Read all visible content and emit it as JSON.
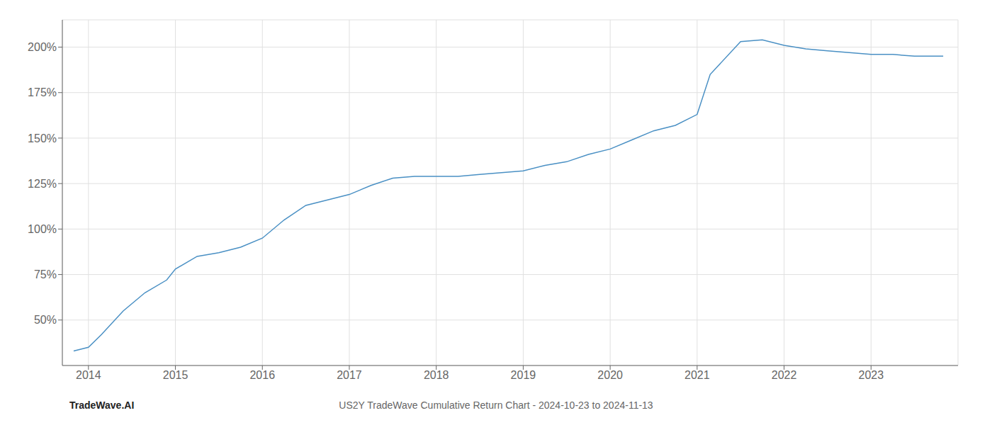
{
  "chart_data": {
    "type": "line",
    "title": "US2Y TradeWave Cumulative Return Chart - 2024-10-23 to 2024-11-13",
    "annotations": [
      "TradeWave.AI"
    ],
    "x": [
      2013.83,
      2014.0,
      2014.15,
      2014.4,
      2014.65,
      2014.9,
      2015.0,
      2015.25,
      2015.5,
      2015.75,
      2016.0,
      2016.25,
      2016.5,
      2016.75,
      2017.0,
      2017.25,
      2017.5,
      2017.75,
      2018.0,
      2018.25,
      2018.5,
      2018.75,
      2019.0,
      2019.25,
      2019.5,
      2019.75,
      2020.0,
      2020.25,
      2020.5,
      2020.75,
      2021.0,
      2021.15,
      2021.5,
      2021.75,
      2022.0,
      2022.25,
      2022.5,
      2022.75,
      2023.0,
      2023.25,
      2023.5,
      2023.83
    ],
    "values": [
      33,
      35,
      42,
      55,
      65,
      72,
      78,
      85,
      87,
      90,
      95,
      105,
      113,
      116,
      119,
      124,
      128,
      129,
      129,
      129,
      130,
      131,
      132,
      135,
      137,
      141,
      144,
      149,
      154,
      157,
      163,
      185,
      203,
      204,
      201,
      199,
      198,
      197,
      196,
      196,
      195,
      195
    ],
    "color": "#4a90c4",
    "xlim": [
      2013.7,
      2024.0
    ],
    "xticks": [
      2014,
      2015,
      2016,
      2017,
      2018,
      2019,
      2020,
      2021,
      2022,
      2023
    ],
    "ylim": [
      25,
      215
    ],
    "yticks": [
      {
        "value": 50,
        "label": "50%"
      },
      {
        "value": 75,
        "label": "75%"
      },
      {
        "value": 100,
        "label": "100%"
      },
      {
        "value": 125,
        "label": "125%"
      },
      {
        "value": 150,
        "label": "150%"
      },
      {
        "value": 175,
        "label": "175%"
      },
      {
        "value": 200,
        "label": "200%"
      }
    ],
    "grid": true
  }
}
